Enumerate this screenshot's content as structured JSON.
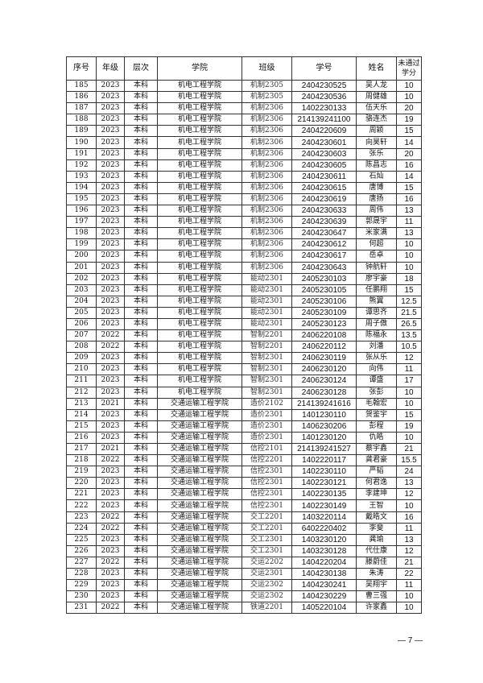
{
  "table": {
    "headers": [
      "序号",
      "年级",
      "层次",
      "学院",
      "班级",
      "学号",
      "姓名",
      "未通过学分"
    ],
    "rows": [
      [
        "185",
        "2023",
        "本科",
        "机电工程学院",
        "机制2305",
        "2404230525",
        "吴人龙",
        "10"
      ],
      [
        "186",
        "2023",
        "本科",
        "机电工程学院",
        "机制2305",
        "2404230536",
        "周健雄",
        "10"
      ],
      [
        "187",
        "2023",
        "本科",
        "机电工程学院",
        "机制2306",
        "1402230133",
        "伍天乐",
        "20"
      ],
      [
        "188",
        "2023",
        "本科",
        "机电工程学院",
        "机制2306",
        "214139241100",
        "骆连杰",
        "19"
      ],
      [
        "189",
        "2023",
        "本科",
        "机电工程学院",
        "机制2306",
        "2404220609",
        "周颖",
        "15"
      ],
      [
        "190",
        "2023",
        "本科",
        "机电工程学院",
        "机制2306",
        "2404230601",
        "向昊轩",
        "14"
      ],
      [
        "191",
        "2023",
        "本科",
        "机电工程学院",
        "机制2306",
        "2404230603",
        "张乐",
        "20"
      ],
      [
        "192",
        "2023",
        "本科",
        "机电工程学院",
        "机制2306",
        "2404230605",
        "陈昌志",
        "16"
      ],
      [
        "193",
        "2023",
        "本科",
        "机电工程学院",
        "机制2306",
        "2404230611",
        "石灿",
        "14"
      ],
      [
        "194",
        "2023",
        "本科",
        "机电工程学院",
        "机制2306",
        "2404230615",
        "唐博",
        "15"
      ],
      [
        "195",
        "2023",
        "本科",
        "机电工程学院",
        "机制2306",
        "2404230619",
        "唐扬",
        "16"
      ],
      [
        "196",
        "2023",
        "本科",
        "机电工程学院",
        "机制2306",
        "2404230633",
        "周伟",
        "13"
      ],
      [
        "197",
        "2023",
        "本科",
        "机电工程学院",
        "机制2306",
        "2404230639",
        "郭晟宇",
        "11"
      ],
      [
        "198",
        "2023",
        "本科",
        "机电工程学院",
        "机制2306",
        "2404230647",
        "米家满",
        "13"
      ],
      [
        "199",
        "2023",
        "本科",
        "机电工程学院",
        "机制2306",
        "2404230612",
        "何超",
        "10"
      ],
      [
        "200",
        "2023",
        "本科",
        "机电工程学院",
        "机制2306",
        "2404230617",
        "岳卓",
        "10"
      ],
      [
        "201",
        "2023",
        "本科",
        "机电工程学院",
        "机制2306",
        "2404230643",
        "钟航轩",
        "10"
      ],
      [
        "202",
        "2023",
        "本科",
        "机电工程学院",
        "能动2301",
        "2405230103",
        "廖宇豪",
        "18"
      ],
      [
        "203",
        "2023",
        "本科",
        "机电工程学院",
        "能动2301",
        "2405230105",
        "任鹏翔",
        "15"
      ],
      [
        "204",
        "2023",
        "本科",
        "机电工程学院",
        "能动2301",
        "2405230106",
        "熊翼",
        "12.5"
      ],
      [
        "205",
        "2023",
        "本科",
        "机电工程学院",
        "能动2301",
        "2405230109",
        "谭思齐",
        "21.5"
      ],
      [
        "206",
        "2023",
        "本科",
        "机电工程学院",
        "能动2301",
        "2405230123",
        "周子傲",
        "26.5"
      ],
      [
        "207",
        "2022",
        "本科",
        "机电工程学院",
        "智制2201",
        "2406220108",
        "陈福永",
        "13.5"
      ],
      [
        "208",
        "2022",
        "本科",
        "机电工程学院",
        "智制2201",
        "2406220112",
        "刘潘",
        "10.5"
      ],
      [
        "209",
        "2023",
        "本科",
        "机电工程学院",
        "智制2301",
        "2406230119",
        "张从乐",
        "12"
      ],
      [
        "210",
        "2023",
        "本科",
        "机电工程学院",
        "智制2301",
        "2406230120",
        "向伟",
        "11"
      ],
      [
        "211",
        "2023",
        "本科",
        "机电工程学院",
        "智制2301",
        "2406230124",
        "谭盛",
        "17"
      ],
      [
        "212",
        "2023",
        "本科",
        "机电工程学院",
        "智制2301",
        "2406230128",
        "张彭",
        "10"
      ],
      [
        "213",
        "2021",
        "本科",
        "交通运输工程学院",
        "造价2102",
        "214139241616",
        "毛翰宏",
        "10"
      ],
      [
        "214",
        "2023",
        "本科",
        "交通运输工程学院",
        "造价2301",
        "1401230110",
        "贺鉴宇",
        "15"
      ],
      [
        "215",
        "2023",
        "本科",
        "交通运输工程学院",
        "造价2301",
        "1406230206",
        "彭程",
        "19"
      ],
      [
        "216",
        "2023",
        "本科",
        "交通运输工程学院",
        "造价2301",
        "1401230120",
        "仇皓",
        "10"
      ],
      [
        "217",
        "2021",
        "本科",
        "交通运输工程学院",
        "信控2101",
        "214139241527",
        "蔡宇鑫",
        "21"
      ],
      [
        "218",
        "2022",
        "本科",
        "交通运输工程学院",
        "信控2201",
        "1402220117",
        "龚君豪",
        "15.5"
      ],
      [
        "219",
        "2023",
        "本科",
        "交通运输工程学院",
        "信控2301",
        "1402230110",
        "严韬",
        "24"
      ],
      [
        "220",
        "2023",
        "本科",
        "交通运输工程学院",
        "信控2301",
        "1402230121",
        "何君逸",
        "13"
      ],
      [
        "221",
        "2023",
        "本科",
        "交通运输工程学院",
        "信控2301",
        "1402230135",
        "李建坤",
        "12"
      ],
      [
        "222",
        "2023",
        "本科",
        "交通运输工程学院",
        "信控2301",
        "1402230149",
        "王智",
        "10"
      ],
      [
        "223",
        "2022",
        "本科",
        "交通运输工程学院",
        "交工2201",
        "1403220114",
        "戴皓文",
        "16"
      ],
      [
        "224",
        "2022",
        "本科",
        "交通运输工程学院",
        "交工2201",
        "6402220402",
        "李斐",
        "11"
      ],
      [
        "225",
        "2023",
        "本科",
        "交通运输工程学院",
        "交工2301",
        "1403230120",
        "龚瑜",
        "13"
      ],
      [
        "226",
        "2023",
        "本科",
        "交通运输工程学院",
        "交工2301",
        "1403230128",
        "代仕康",
        "12"
      ],
      [
        "227",
        "2022",
        "本科",
        "交通运输工程学院",
        "交运2202",
        "1404220204",
        "滕蔚佳",
        "21"
      ],
      [
        "228",
        "2023",
        "本科",
        "交通运输工程学院",
        "交运2301",
        "1404230138",
        "朱涛",
        "22"
      ],
      [
        "229",
        "2023",
        "本科",
        "交通运输工程学院",
        "交运2302",
        "1404230241",
        "吴翔宇",
        "11"
      ],
      [
        "230",
        "2023",
        "本科",
        "交通运输工程学院",
        "交运2302",
        "1404230229",
        "曹三强",
        "10"
      ],
      [
        "231",
        "2022",
        "本科",
        "交通运输工程学院",
        "铁道2201",
        "1405220104",
        "许家鑫",
        "10"
      ]
    ]
  },
  "footer": {
    "page_number": "— 7 —"
  }
}
